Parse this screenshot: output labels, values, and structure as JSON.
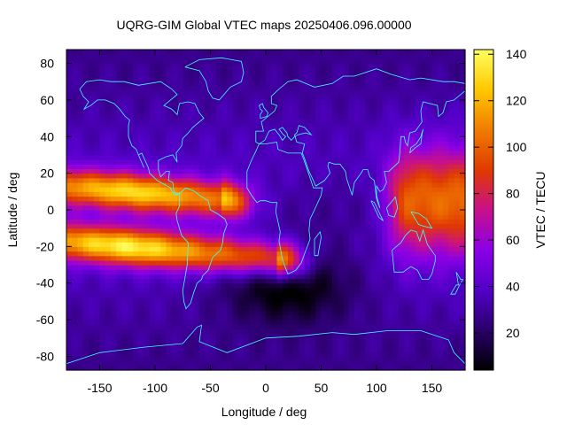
{
  "chart_data": {
    "type": "heatmap",
    "title": "UQRG-GIM Global VTEC maps 20250406.096.00000",
    "xlabel": "Longitude / deg",
    "ylabel": "Latitude / deg",
    "colorbar_label": "VTEC / TECU",
    "xlim": [
      -180,
      180
    ],
    "ylim": [
      -87.5,
      87.5
    ],
    "clim": [
      4,
      142
    ],
    "x_ticks": [
      -150,
      -100,
      -50,
      0,
      50,
      100,
      150
    ],
    "y_ticks": [
      -80,
      -60,
      -40,
      -20,
      0,
      20,
      40,
      60,
      80
    ],
    "colorbar_ticks": [
      20,
      40,
      60,
      80,
      100,
      120,
      140
    ],
    "colormap": [
      "#000000",
      "#2a006a",
      "#5200c8",
      "#8a00e6",
      "#c8108a",
      "#e03a00",
      "#f07c00",
      "#ffc800",
      "#ffff60"
    ],
    "coastline_color": "#40ffff",
    "grid": false,
    "colorbar_position": "right",
    "features": {
      "equatorial_anomaly": [
        {
          "lat": 10,
          "lon_min": -180,
          "lon_max": -40,
          "peak_lon": -120,
          "peak_value": 132
        },
        {
          "lat": -20,
          "lon_min": -180,
          "lon_max": 10,
          "peak_lon": -125,
          "peak_value": 140
        }
      ],
      "east_enhancement": {
        "lon_min": 130,
        "lon_max": 180,
        "lat_min": -20,
        "lat_max": 30,
        "peak_value": 105
      },
      "background_mid_lat": 40,
      "background_polar": 25,
      "south_pacific_minimum": {
        "lon": 20,
        "lat": -40,
        "value": 8
      }
    }
  }
}
